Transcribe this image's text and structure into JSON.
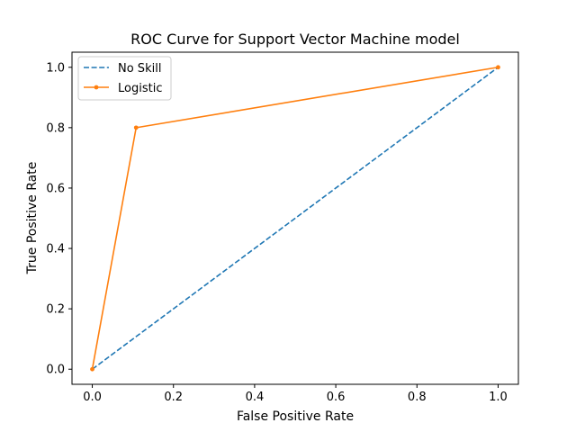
{
  "chart_data": {
    "type": "line",
    "title": "ROC Curve for Support Vector Machine model",
    "xlabel": "False Positive Rate",
    "ylabel": "True Positive Rate",
    "xlim": [
      -0.05,
      1.05
    ],
    "ylim": [
      -0.05,
      1.05
    ],
    "xticks": [
      0.0,
      0.2,
      0.4,
      0.6,
      0.8,
      1.0
    ],
    "yticks": [
      0.0,
      0.2,
      0.4,
      0.6,
      0.8,
      1.0
    ],
    "xtick_labels": [
      "0.0",
      "0.2",
      "0.4",
      "0.6",
      "0.8",
      "1.0"
    ],
    "ytick_labels": [
      "0.0",
      "0.2",
      "0.4",
      "0.6",
      "0.8",
      "1.0"
    ],
    "grid": false,
    "legend": {
      "placement": "top-left"
    },
    "series": [
      {
        "name": "No Skill",
        "style": "dashed",
        "markers": false,
        "color": "#1f77b4",
        "x": [
          0.0,
          1.0
        ],
        "y": [
          0.0,
          1.0
        ]
      },
      {
        "name": "Logistic",
        "style": "solid",
        "markers": true,
        "color": "#ff7f0e",
        "x": [
          0.0,
          0.108,
          1.0
        ],
        "y": [
          0.0,
          0.8,
          1.0
        ]
      }
    ]
  }
}
